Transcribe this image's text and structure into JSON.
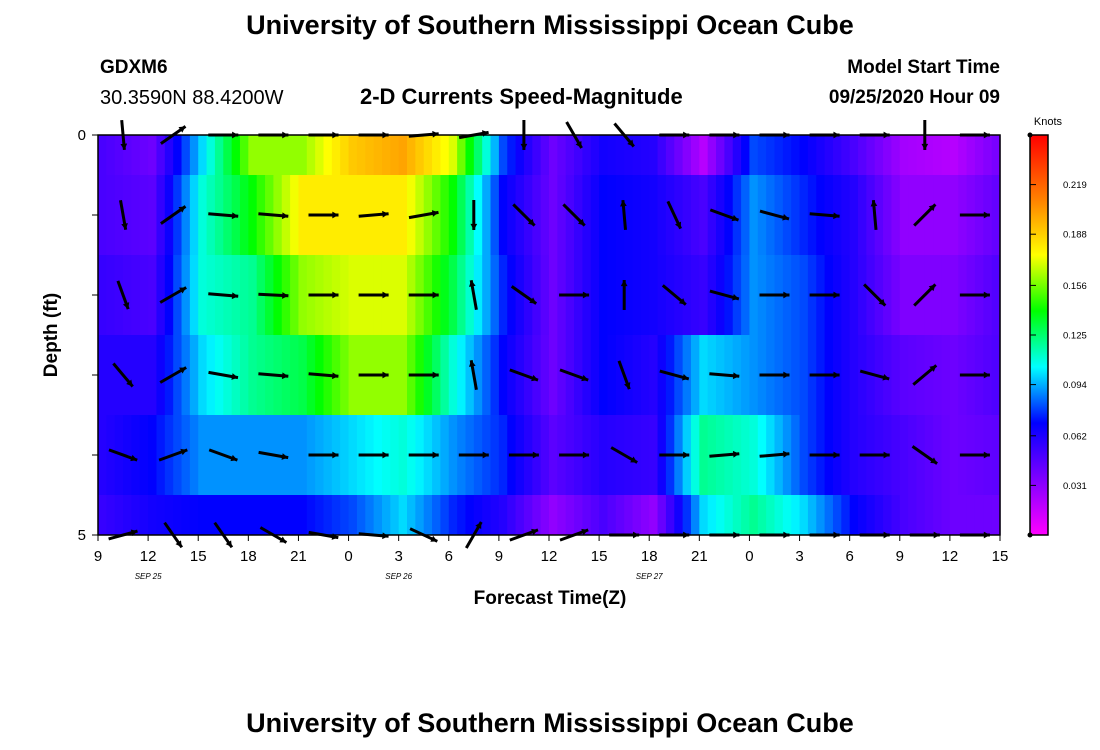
{
  "header": {
    "title": "University of Southern Mississippi Ocean Cube",
    "station_id": "GDXM6",
    "coordinates": "30.3590N 88.4200W",
    "plot_title": "2-D Currents Speed-Magnitude",
    "model_start_label": "Model Start Time",
    "model_start_value": "09/25/2020 Hour 09"
  },
  "footer": {
    "title": "University of Southern Mississippi Ocean Cube"
  },
  "chart_data": {
    "type": "heatmap",
    "title": "2-D Currents Speed-Magnitude",
    "xlabel": "Forecast Time(Z)",
    "ylabel": "Depth (ft)",
    "x_ticks": [
      "9",
      "12",
      "15",
      "18",
      "21",
      "0",
      "3",
      "6",
      "9",
      "12",
      "15",
      "18",
      "21",
      "0",
      "3",
      "6",
      "9",
      "12",
      "15"
    ],
    "date_labels": [
      "SEP 25",
      "SEP 26",
      "SEP 27"
    ],
    "y_ticks": [
      "0",
      "5"
    ],
    "ylim": [
      0,
      5
    ],
    "colorbar": {
      "unit": "Knots",
      "ticks": [
        "0.219",
        "0.188",
        "0.156",
        "0.125",
        "0.094",
        "0.062",
        "0.031"
      ],
      "range": [
        0,
        0.25
      ]
    },
    "layers": [
      {
        "depth_top": 0,
        "depth_bottom": 0.5,
        "speeds": [
          0.05,
          0.04,
          0.1,
          0.16,
          0.16,
          0.19,
          0.2,
          0.17,
          0.08,
          0.04,
          0.065,
          0.06,
          0.02,
          0.08,
          0.07,
          0.05,
          0.025,
          0.02,
          0.04
        ]
      },
      {
        "depth_top": 0.5,
        "depth_bottom": 1.5,
        "speeds": [
          0.05,
          0.045,
          0.11,
          0.14,
          0.18,
          0.18,
          0.18,
          0.14,
          0.07,
          0.04,
          0.07,
          0.065,
          0.05,
          0.09,
          0.075,
          0.06,
          0.03,
          0.03,
          0.045
        ]
      },
      {
        "depth_top": 1.5,
        "depth_bottom": 2.5,
        "speeds": [
          0.055,
          0.05,
          0.11,
          0.12,
          0.16,
          0.17,
          0.17,
          0.13,
          0.075,
          0.04,
          0.07,
          0.065,
          0.055,
          0.09,
          0.08,
          0.06,
          0.035,
          0.035,
          0.05
        ]
      },
      {
        "depth_top": 2.5,
        "depth_bottom": 3.5,
        "speeds": [
          0.06,
          0.06,
          0.1,
          0.12,
          0.13,
          0.16,
          0.16,
          0.11,
          0.07,
          0.04,
          0.07,
          0.06,
          0.1,
          0.09,
          0.08,
          0.06,
          0.045,
          0.04,
          0.05
        ]
      },
      {
        "depth_top": 3.5,
        "depth_bottom": 4.5,
        "speeds": [
          0.06,
          0.07,
          0.09,
          0.09,
          0.09,
          0.1,
          0.11,
          0.09,
          0.075,
          0.045,
          0.06,
          0.055,
          0.12,
          0.11,
          0.08,
          0.06,
          0.05,
          0.04,
          0.045
        ]
      },
      {
        "depth_top": 4.5,
        "depth_bottom": 5,
        "speeds": [
          0.055,
          0.065,
          0.07,
          0.07,
          0.07,
          0.08,
          0.1,
          0.075,
          0.06,
          0.03,
          0.05,
          0.03,
          0.1,
          0.12,
          0.1,
          0.07,
          0.05,
          0.04,
          0.04
        ]
      }
    ],
    "vectors": [
      {
        "depth": 0.0,
        "angles": [
          55,
          85,
          -35,
          0,
          0,
          0,
          0,
          -5,
          -10,
          90,
          60,
          50,
          0,
          0,
          0,
          0,
          0,
          90,
          0
        ]
      },
      {
        "depth": 1.0,
        "angles": [
          40,
          80,
          -35,
          5,
          5,
          0,
          -5,
          -10,
          90,
          45,
          45,
          -95,
          65,
          20,
          15,
          5,
          -95,
          -45,
          0
        ]
      },
      {
        "depth": 2.0,
        "angles": [
          30,
          70,
          -30,
          5,
          3,
          0,
          0,
          0,
          -100,
          35,
          0,
          -90,
          40,
          15,
          0,
          0,
          45,
          -45,
          0
        ]
      },
      {
        "depth": 3.0,
        "angles": [
          10,
          50,
          -30,
          10,
          5,
          5,
          0,
          0,
          -100,
          20,
          20,
          70,
          15,
          5,
          0,
          0,
          15,
          -40,
          0
        ]
      },
      {
        "depth": 4.0,
        "angles": [
          0,
          20,
          -20,
          20,
          10,
          0,
          0,
          0,
          0,
          0,
          0,
          30,
          0,
          -5,
          -5,
          0,
          0,
          35,
          0
        ]
      },
      {
        "depth": 5.0,
        "angles": [
          -15,
          -15,
          55,
          55,
          30,
          10,
          5,
          25,
          -60,
          -20,
          -20,
          0,
          0,
          0,
          0,
          0,
          0,
          0,
          0
        ]
      }
    ]
  }
}
